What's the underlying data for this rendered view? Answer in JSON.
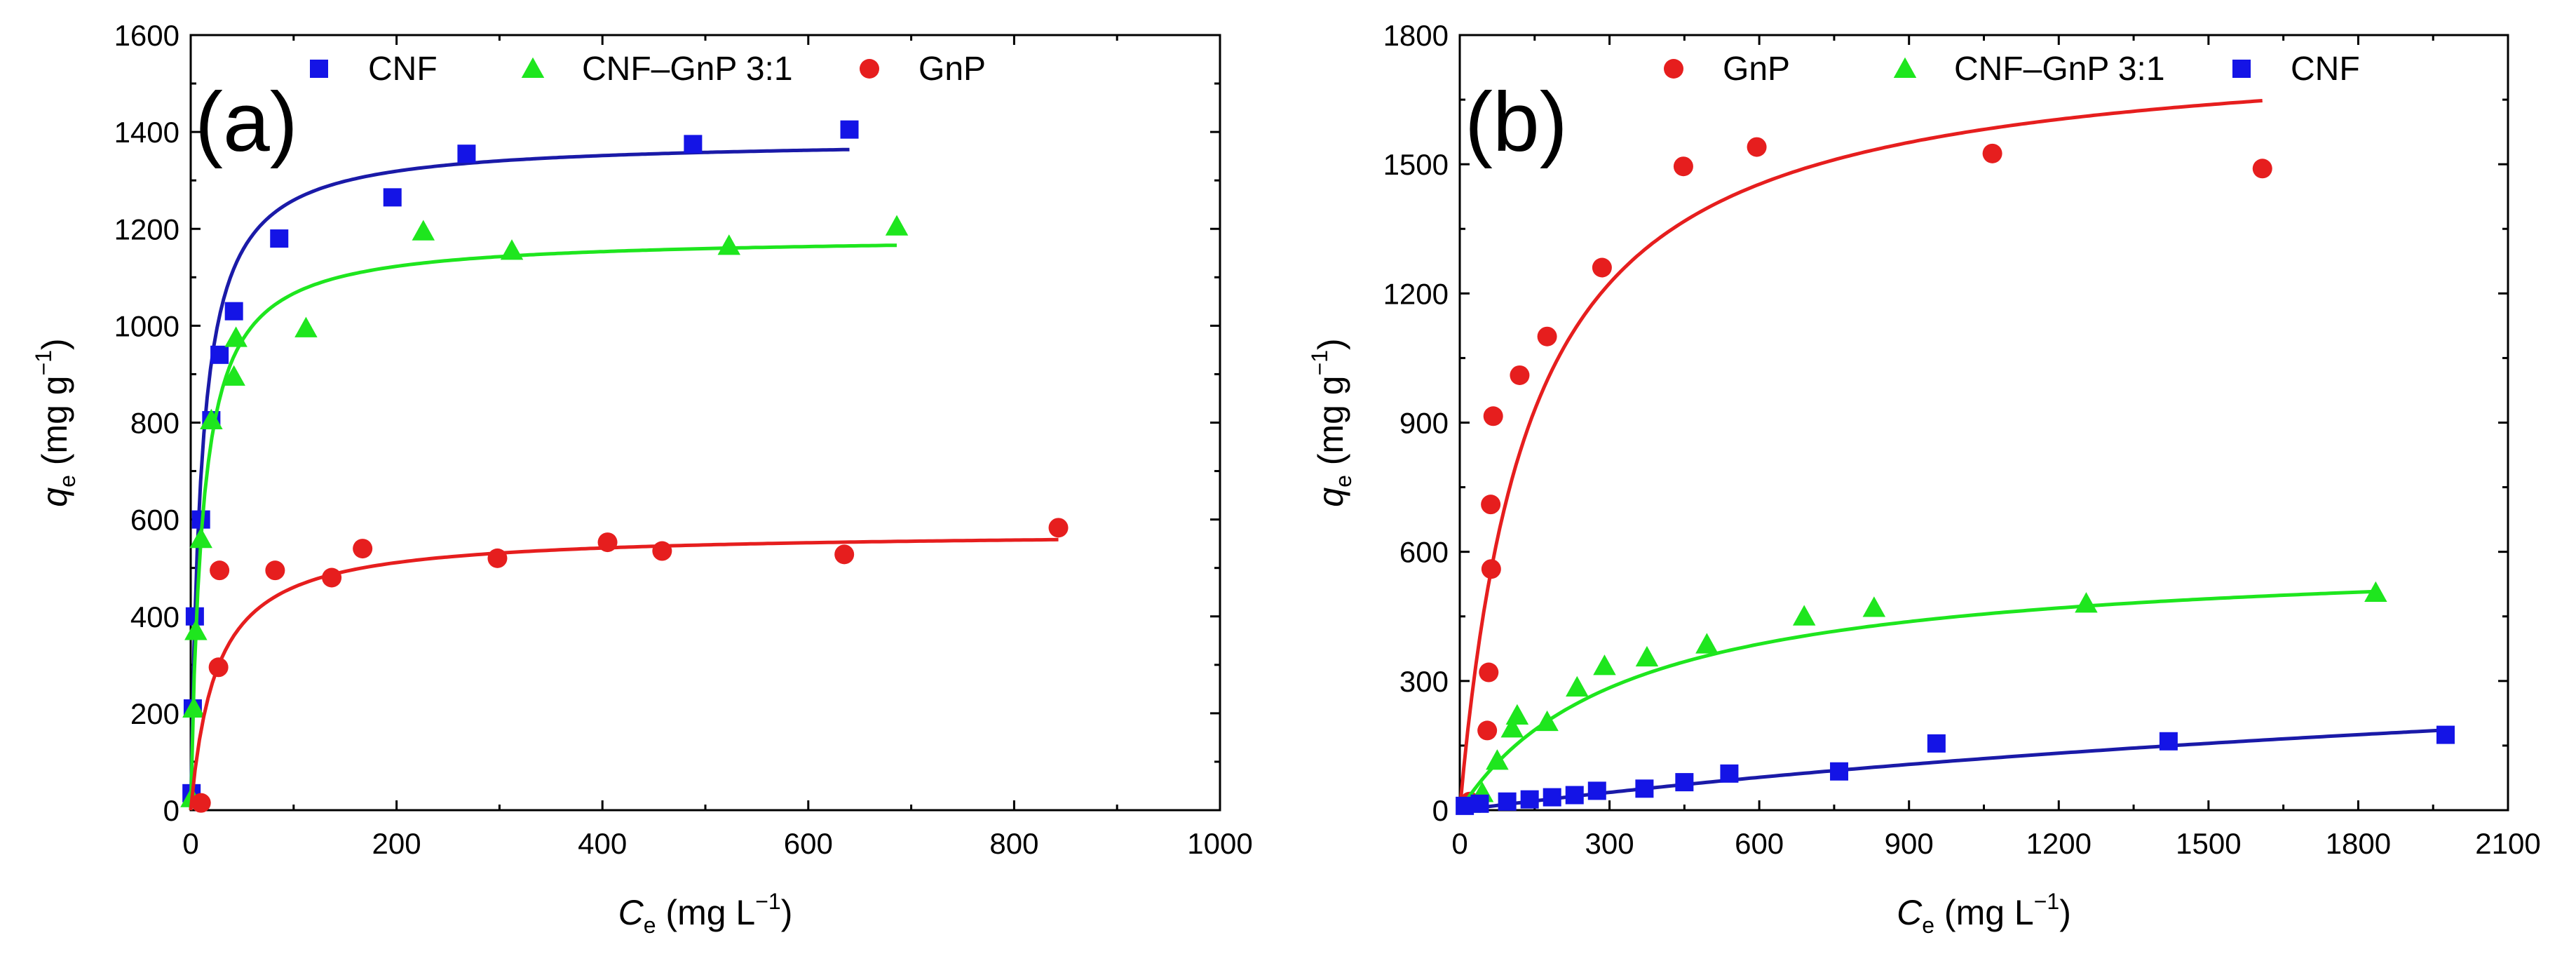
{
  "chart_data": [
    {
      "id": "a",
      "type": "scatter",
      "panel_label": "(a)",
      "xlabel": "C",
      "xlabel_sub": "e",
      "xlabel_unit": "(mg L",
      "xlabel_unit_sup": "−1",
      "xlabel_unit_end": ")",
      "ylabel": "q",
      "ylabel_sub": "e",
      "ylabel_unit": "(mg g",
      "ylabel_unit_sup": "−1",
      "ylabel_unit_end": ")",
      "xlim": [
        0,
        1000
      ],
      "ylim": [
        0,
        1600
      ],
      "xticks": [
        0,
        200,
        400,
        600,
        800,
        1000
      ],
      "yticks": [
        0,
        200,
        400,
        600,
        800,
        1000,
        1200,
        1400,
        1600
      ],
      "legend_position": "top",
      "series": [
        {
          "name": "CNF",
          "marker": "square",
          "color": "#1414e6",
          "line_color": "#1a1aa8",
          "x": [
            0.8,
            2,
            4,
            10,
            20,
            28,
            42,
            86,
            196,
            268,
            488,
            640
          ],
          "y": [
            35,
            210,
            400,
            600,
            805,
            940,
            1030,
            1180,
            1265,
            1355,
            1375,
            1405
          ],
          "fit": {
            "model": "langmuir",
            "qmax": 1385,
            "KL": 0.1,
            "x_end": 640
          }
        },
        {
          "name": "CNF–GnP 3:1",
          "marker": "triangle",
          "color": "#1ee61e",
          "line_color": "#1ee61e",
          "x": [
            1,
            3,
            5,
            10,
            20,
            42,
            44,
            112,
            226,
            312,
            523,
            686
          ],
          "y": [
            25,
            210,
            370,
            560,
            805,
            895,
            975,
            995,
            1195,
            1155,
            1165,
            1205
          ],
          "fit": {
            "model": "langmuir",
            "qmax": 1185,
            "KL": 0.09,
            "x_end": 686
          }
        },
        {
          "name": "GnP",
          "marker": "circle",
          "color": "#e61e1e",
          "line_color": "#e61e1e",
          "x": [
            10,
            27,
            28,
            82,
            137,
            167,
            298,
            405,
            458,
            635,
            843
          ],
          "y": [
            15,
            295,
            495,
            495,
            480,
            540,
            520,
            553,
            535,
            528,
            583
          ],
          "fit": {
            "model": "langmuir",
            "qmax": 575,
            "KL": 0.04,
            "x_end": 843
          }
        }
      ]
    },
    {
      "id": "b",
      "type": "scatter",
      "panel_label": "(b)",
      "xlabel": "C",
      "xlabel_sub": "e",
      "xlabel_unit": "(mg L",
      "xlabel_unit_sup": "−1",
      "xlabel_unit_end": ")",
      "ylabel": "q",
      "ylabel_sub": "e",
      "ylabel_unit": "(mg g",
      "ylabel_unit_sup": "−1",
      "ylabel_unit_end": ")",
      "xlim": [
        0,
        2100
      ],
      "ylim": [
        0,
        1800
      ],
      "xticks": [
        0,
        300,
        600,
        900,
        1200,
        1500,
        1800,
        2100
      ],
      "yticks": [
        0,
        300,
        600,
        900,
        1200,
        1500,
        1800
      ],
      "legend_position": "top",
      "series": [
        {
          "name": "GnP",
          "marker": "circle",
          "color": "#e61e1e",
          "line_color": "#e61e1e",
          "x": [
            20,
            55,
            58,
            62,
            63,
            67,
            120,
            175,
            285,
            448,
            595,
            1067,
            1608
          ],
          "y": [
            20,
            185,
            320,
            710,
            560,
            915,
            1010,
            1100,
            1260,
            1495,
            1540,
            1525,
            1490
          ],
          "fit": {
            "model": "langmuir",
            "qmax": 1790,
            "KL": 0.0072,
            "x_end": 1608
          }
        },
        {
          "name": "CNF–GnP 3:1",
          "marker": "triangle",
          "color": "#1ee61e",
          "line_color": "#1ee61e",
          "x": [
            20,
            45,
            75,
            105,
            115,
            175,
            235,
            290,
            375,
            495,
            690,
            830,
            1255,
            1835
          ],
          "y": [
            15,
            40,
            115,
            190,
            220,
            205,
            285,
            335,
            355,
            385,
            450,
            470,
            480,
            505
          ],
          "fit": {
            "model": "langmuir",
            "qmax": 600,
            "KL": 0.003,
            "x_end": 1835
          }
        },
        {
          "name": "CNF",
          "marker": "square",
          "color": "#1414e6",
          "line_color": "#1a1aa8",
          "x": [
            10,
            40,
            95,
            140,
            185,
            230,
            275,
            370,
            450,
            540,
            760,
            955,
            1420,
            1975
          ],
          "y": [
            10,
            15,
            20,
            25,
            30,
            35,
            45,
            50,
            65,
            85,
            90,
            155,
            160,
            175
          ],
          "fit": {
            "model": "langmuir",
            "qmax": 500,
            "KL": 0.0003,
            "x_end": 1975
          }
        }
      ]
    }
  ]
}
